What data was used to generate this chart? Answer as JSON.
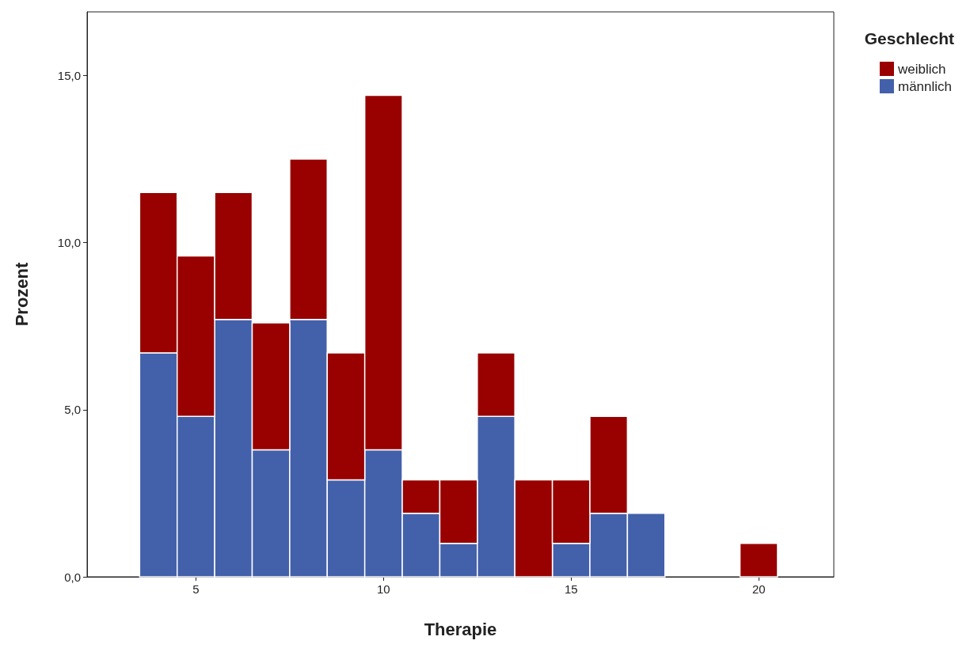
{
  "chart_data": {
    "type": "bar",
    "xlabel": "Therapie",
    "ylabel": "Prozent",
    "legend_title": "Geschlecht",
    "x": [
      4,
      5,
      6,
      7,
      8,
      9,
      10,
      11,
      12,
      13,
      14,
      15,
      16,
      17,
      18,
      19,
      20
    ],
    "stacked": true,
    "series": [
      {
        "name": "männlich",
        "color": "#4360aa",
        "values": [
          6.7,
          4.8,
          7.7,
          3.8,
          7.7,
          2.9,
          3.8,
          1.9,
          1.0,
          4.8,
          0,
          1.0,
          1.9,
          1.9,
          0,
          0,
          0
        ]
      },
      {
        "name": "weiblich",
        "color": "#990000",
        "values": [
          4.8,
          4.8,
          3.8,
          3.8,
          4.8,
          3.8,
          10.6,
          1.0,
          1.9,
          1.9,
          2.9,
          1.9,
          2.9,
          0,
          0,
          0,
          1.0
        ]
      }
    ],
    "xlim": [
      2.1,
      22
    ],
    "xticks": [
      5,
      10,
      15,
      20
    ],
    "ylim": [
      0,
      16.9
    ],
    "yticks": [
      {
        "value": 0,
        "label": "0,0"
      },
      {
        "value": 5,
        "label": "5,0"
      },
      {
        "value": 10,
        "label": "10,0"
      },
      {
        "value": 15,
        "label": "15,0"
      }
    ],
    "grid": false,
    "legend": "right"
  }
}
